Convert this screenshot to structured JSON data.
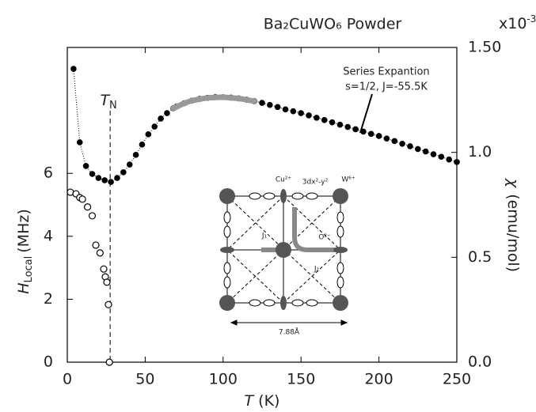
{
  "chart_data": {
    "type": "scatter",
    "title": "Ba₂CuWO₆   Powder",
    "xlabel": {
      "symbol": "T",
      "unit": "(K)"
    },
    "ylabel": {
      "symbol": "H",
      "sub": "Local",
      "unit": "(MHz)"
    },
    "y2label": {
      "symbol": "χ",
      "unit": "(emu/mol)"
    },
    "y2_multiplier": {
      "base": "x10",
      "exp": "-3"
    },
    "xlim": [
      0,
      250
    ],
    "xticks": [
      0,
      50,
      100,
      150,
      200,
      250
    ],
    "ylim": [
      0,
      10
    ],
    "yticks": [
      0,
      2,
      4,
      6
    ],
    "y2lim": [
      0,
      1.5
    ],
    "y2ticks": [
      {
        "value": 0,
        "label": "0.0"
      },
      0.5,
      {
        "value": 1,
        "label": "1.0"
      },
      {
        "value": 1.5,
        "label": "1.50"
      }
    ],
    "series": [
      {
        "style": "filled",
        "color": "#000000",
        "axis": "y2",
        "x": [
          4,
          8,
          12,
          16,
          20,
          24,
          28,
          32,
          36,
          40,
          44,
          48,
          52,
          56,
          60,
          64,
          68,
          70,
          75,
          80,
          85,
          90,
          95,
          100,
          105,
          110,
          115,
          120,
          125,
          130,
          135,
          140,
          145,
          150,
          155,
          160,
          165,
          170,
          175,
          180,
          185,
          190,
          195,
          200,
          205,
          210,
          215,
          220,
          225,
          230,
          235,
          240,
          245,
          250
        ],
        "values": [
          1.398,
          1.048,
          0.935,
          0.897,
          0.878,
          0.867,
          0.859,
          0.878,
          0.905,
          0.942,
          0.988,
          1.037,
          1.086,
          1.123,
          1.161,
          1.187,
          1.21,
          1.218,
          1.234,
          1.247,
          1.255,
          1.26,
          1.263,
          1.263,
          1.261,
          1.257,
          1.251,
          1.244,
          1.236,
          1.226,
          1.216,
          1.205,
          1.196,
          1.187,
          1.176,
          1.165,
          1.154,
          1.143,
          1.132,
          1.121,
          1.11,
          1.099,
          1.088,
          1.078,
          1.066,
          1.054,
          1.041,
          1.029,
          1.016,
          1.004,
          0.991,
          0.979,
          0.966,
          0.954
        ]
      },
      {
        "style": "fit",
        "color": "#999999",
        "axis": "y2",
        "x": [
          68,
          75,
          80,
          90,
          100,
          110,
          120
        ],
        "values": [
          1.21,
          1.234,
          1.247,
          1.26,
          1.263,
          1.257,
          1.244
        ]
      },
      {
        "style": "open",
        "color": "#000000",
        "axis": "y",
        "x": [
          2,
          5.6,
          8,
          9.7,
          13,
          16,
          18.3,
          21,
          23.4,
          24.4,
          25.4,
          26.4,
          27
        ],
        "values": [
          5.4,
          5.35,
          5.23,
          5.18,
          4.93,
          4.65,
          3.72,
          3.47,
          2.96,
          2.71,
          2.54,
          1.83,
          0
        ]
      }
    ],
    "vline": 27.5,
    "vline_label": {
      "symbol": "T",
      "sub": "N"
    },
    "annotations": [
      "Series Expantion",
      "s=1/2, J=-55.5K"
    ],
    "inset": {
      "cu": "Cu²⁺",
      "orbital": "3dx²-y²",
      "w": "W⁶⁺",
      "j1": "J₁",
      "o": "O²⁻",
      "j2": "J₂",
      "length": "7.88Å"
    }
  }
}
